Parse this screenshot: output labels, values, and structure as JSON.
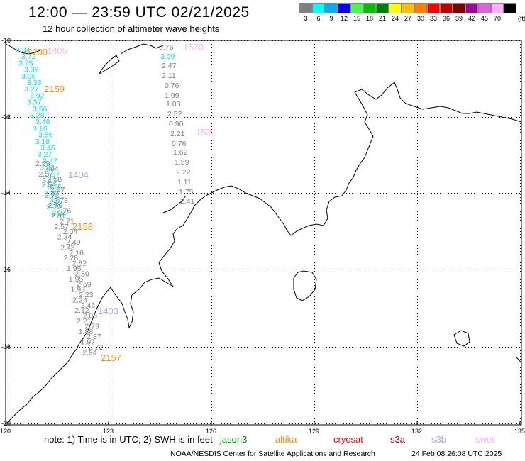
{
  "header": {
    "title": "12:00 — 23:59 UTC 02/21/2025",
    "subtitle": "12 hour collection of altimeter wave heights"
  },
  "scale": {
    "unit": "(ft)",
    "bins": [
      {
        "label": "3",
        "color": "#808080"
      },
      {
        "label": "6",
        "color": "#00ffff"
      },
      {
        "label": "9",
        "color": "#00b0ff"
      },
      {
        "label": "12",
        "color": "#0000ff"
      },
      {
        "label": "15",
        "color": "#40ff40"
      },
      {
        "label": "18",
        "color": "#00c000"
      },
      {
        "label": "21",
        "color": "#008000"
      },
      {
        "label": "24",
        "color": "#ffff00"
      },
      {
        "label": "27",
        "color": "#ffc000"
      },
      {
        "label": "30",
        "color": "#ff8000"
      },
      {
        "label": "33",
        "color": "#ff0000"
      },
      {
        "label": "36",
        "color": "#c00000"
      },
      {
        "label": "39",
        "color": "#800000"
      },
      {
        "label": "42",
        "color": "#a000a0"
      },
      {
        "label": "45",
        "color": "#e060e0"
      },
      {
        "label": "70",
        "color": "#ffb0ff"
      },
      {
        "label": "",
        "color": "#000000"
      }
    ]
  },
  "map": {
    "lat_labels": [
      "-10",
      "-12",
      "-14",
      "-16",
      "-18",
      "-20"
    ],
    "lon_labels": [
      "120",
      "123",
      "126",
      "129",
      "132",
      "135"
    ],
    "grid_color": "#000000",
    "passes": [
      {
        "time": "2200",
        "color": "#ff8c00"
      },
      {
        "time": "1405",
        "color": "#ffb0ff"
      },
      {
        "time": "2159",
        "color": "#ff8c00"
      },
      {
        "time": "1520",
        "color": "#ffb0ff"
      },
      {
        "time": "1521",
        "color": "#ffb0ff"
      },
      {
        "time": "1404",
        "color": "#b0a0ff"
      },
      {
        "time": "2158",
        "color": "#ff8c00"
      },
      {
        "time": "1403",
        "color": "#b0a0ff"
      },
      {
        "time": "2157",
        "color": "#ff8c00"
      }
    ],
    "track_mid": {
      "color": "#808080",
      "values": [
        "0.76",
        "2.47",
        "2.11",
        "0.76",
        "1.99",
        "1.03",
        "2.52",
        "0.90",
        "2.21",
        "0.76",
        "1.62",
        "1.59",
        "2.22",
        "1.11",
        "1.75",
        "2.41"
      ]
    },
    "track_mid_cyan": {
      "color": "#00e0ff",
      "values": [
        "3.09"
      ]
    },
    "track_west_cyan": {
      "color": "#00e0ff",
      "values": [
        "3.34",
        "3.72",
        "3.75",
        "3.38",
        "3.06",
        "3.33",
        "3.27",
        "3.92",
        "3.37",
        "3.56",
        "3.28",
        "3.48",
        "3.16",
        "3.56",
        "3.18",
        "3.46",
        "3.27",
        "3.47",
        "3.32",
        "3.07",
        "3.13",
        "3.25",
        "3.42",
        "3.37",
        "3.79",
        "3.34"
      ]
    },
    "track_west_grey": {
      "color": "#808080",
      "values": [
        "2.99",
        "2.94",
        "2.57",
        "2.58",
        "2.54",
        "2.97",
        "2.72",
        "2.78",
        "2.79",
        "2.76",
        "2.81",
        "2.71",
        "2.57",
        "2.04",
        "2.34",
        "2.49",
        "2.43",
        "2.16",
        "2.28",
        "2.82",
        "1.95",
        "2.50",
        "1.95",
        "2.59",
        "1.93",
        "2.23",
        "2.24",
        "2.46",
        "2.12",
        "2.03",
        "2.21",
        "2.73",
        "1.88",
        "2.87",
        "1.97",
        "2.72",
        "2.94"
      ]
    }
  },
  "footer": {
    "note_prefix": "note:  1) Time is in UTC;  2) SWH is in feet",
    "legend": [
      {
        "name": "jason3",
        "color": "#008000"
      },
      {
        "name": "altika",
        "color": "#ff8c00"
      },
      {
        "name": "cryosat",
        "color": "#ff0000"
      },
      {
        "name": "s3a",
        "color": "#a00000"
      },
      {
        "name": "s3b",
        "color": "#b0a0ff"
      },
      {
        "name": "swot",
        "color": "#ffb0ff"
      }
    ],
    "credit": "NOAA/NESDIS Center for Satellite Applications and Research",
    "generated": "24 Feb 08:26:08 UTC 2025"
  }
}
